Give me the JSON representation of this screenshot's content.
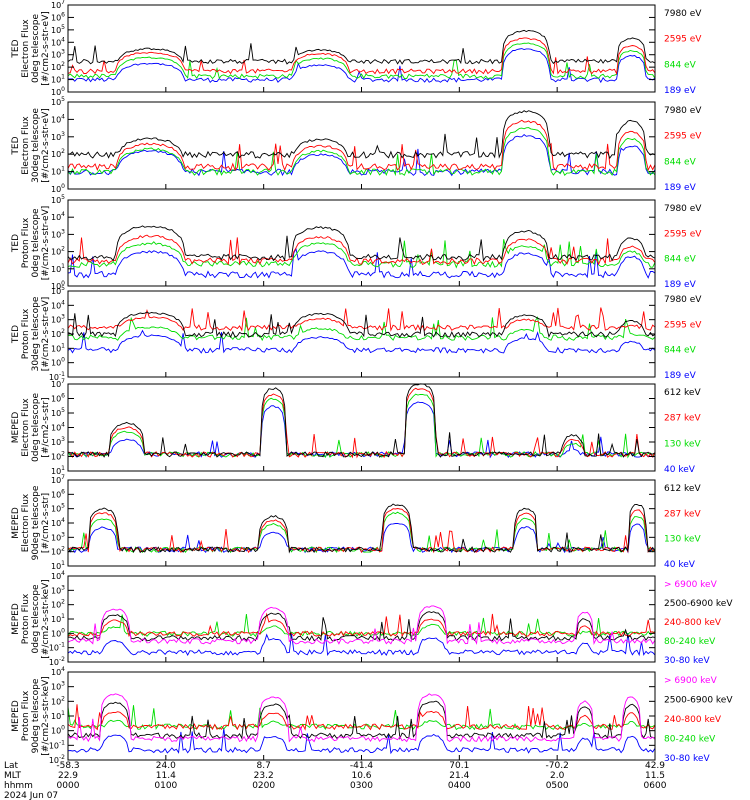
{
  "colors": {
    "blue": "#0000ff",
    "red": "#ff0000",
    "green": "#00dd00",
    "black": "#000000",
    "magenta": "#ff00ff"
  },
  "chart_data": [
    {
      "type": "line",
      "ylabel_lines": [
        "TED",
        "Electron Flux",
        "0deg telescope",
        "[#/cm2-s-str-eV]"
      ],
      "yscale": "log",
      "ylim": [
        1,
        10000000
      ],
      "ytick_labels": [
        "10^0",
        "10^1",
        "10^2",
        "10^3",
        "10^4",
        "10^5",
        "10^6",
        "10^7"
      ],
      "legend": [
        {
          "label": "7980 eV",
          "color": "#000000"
        },
        {
          "label": "2595 eV",
          "color": "#ff0000"
        },
        {
          "label": "844 eV",
          "color": "#00dd00"
        },
        {
          "label": "189 eV",
          "color": "#0000ff"
        }
      ],
      "baseline": [
        300,
        50,
        20,
        10
      ],
      "peaks": [
        {
          "x": 0.14,
          "v": [
            3000,
            1500,
            600,
            200
          ],
          "w": 0.12
        },
        {
          "x": 0.43,
          "v": [
            2500,
            1200,
            500,
            150
          ],
          "w": 0.1
        },
        {
          "x": 0.78,
          "v": [
            80000,
            20000,
            8000,
            3000
          ],
          "w": 0.08
        },
        {
          "x": 0.96,
          "v": [
            20000,
            5000,
            2000,
            800
          ],
          "w": 0.05
        }
      ]
    },
    {
      "type": "line",
      "ylabel_lines": [
        "TED",
        "Electron Flux",
        "30deg telescope",
        "[#/cm2-s-str-eV]"
      ],
      "yscale": "log",
      "ylim": [
        1,
        100000
      ],
      "ytick_labels": [
        "10^0",
        "10^1",
        "10^2",
        "10^3",
        "10^4",
        "10^5"
      ],
      "legend": [
        {
          "label": "7980 eV",
          "color": "#000000"
        },
        {
          "label": "2595 eV",
          "color": "#ff0000"
        },
        {
          "label": "844 eV",
          "color": "#00dd00"
        },
        {
          "label": "189 eV",
          "color": "#0000ff"
        }
      ],
      "baseline": [
        100,
        20,
        10,
        10
      ],
      "peaks": [
        {
          "x": 0.14,
          "v": [
            800,
            400,
            200,
            150
          ],
          "w": 0.12
        },
        {
          "x": 0.43,
          "v": [
            700,
            300,
            150,
            100
          ],
          "w": 0.1
        },
        {
          "x": 0.78,
          "v": [
            30000,
            8000,
            3000,
            1200
          ],
          "w": 0.08
        },
        {
          "x": 0.96,
          "v": [
            8000,
            2000,
            800,
            300
          ],
          "w": 0.05
        }
      ]
    },
    {
      "type": "line",
      "ylabel_lines": [
        "TED",
        "Proton Flux",
        "0deg telescope",
        "[#/cm2-s-str-eV]"
      ],
      "yscale": "log",
      "ylim": [
        1,
        100000
      ],
      "ytick_labels": [
        "10^0",
        "10^1",
        "10^2",
        "10^3",
        "10^4",
        "10^5"
      ],
      "legend": [
        {
          "label": "7980 eV",
          "color": "#000000"
        },
        {
          "label": "2595 eV",
          "color": "#ff0000"
        },
        {
          "label": "844 eV",
          "color": "#00dd00"
        },
        {
          "label": "189 eV",
          "color": "#0000ff"
        }
      ],
      "baseline": [
        50,
        30,
        20,
        5
      ],
      "peaks": [
        {
          "x": 0.14,
          "v": [
            3000,
            800,
            300,
            100
          ],
          "w": 0.12
        },
        {
          "x": 0.43,
          "v": [
            2500,
            700,
            300,
            100
          ],
          "w": 0.1
        },
        {
          "x": 0.78,
          "v": [
            1500,
            500,
            200,
            80
          ],
          "w": 0.08
        },
        {
          "x": 0.96,
          "v": [
            600,
            200,
            100,
            50
          ],
          "w": 0.05
        }
      ]
    },
    {
      "type": "line",
      "ylabel_lines": [
        "TED",
        "Proton Flux",
        "30deg telescope",
        "[#/cm2-s-str-eV]"
      ],
      "yscale": "log",
      "ylim": [
        0.1,
        100000
      ],
      "ytick_labels": [
        "10^-1",
        "10^0",
        "10^1",
        "10^2",
        "10^3",
        "10^4",
        "10^5"
      ],
      "legend": [
        {
          "label": "7980 eV",
          "color": "#000000"
        },
        {
          "label": "2595 eV",
          "color": "#ff0000"
        },
        {
          "label": "844 eV",
          "color": "#00dd00"
        },
        {
          "label": "189 eV",
          "color": "#0000ff"
        }
      ],
      "baseline": [
        100,
        300,
        60,
        8
      ],
      "peaks": [
        {
          "x": 0.14,
          "v": [
            3000,
            1500,
            300,
            80
          ],
          "w": 0.12
        },
        {
          "x": 0.43,
          "v": [
            2500,
            1200,
            250,
            60
          ],
          "w": 0.1
        },
        {
          "x": 0.78,
          "v": [
            2000,
            1000,
            200,
            50
          ],
          "w": 0.08
        },
        {
          "x": 0.96,
          "v": [
            800,
            400,
            100,
            30
          ],
          "w": 0.05
        }
      ]
    },
    {
      "type": "line",
      "ylabel_lines": [
        "MEPED",
        "Electron Flux",
        "0deg telescope",
        "[#/cm2-s-str]"
      ],
      "yscale": "log",
      "ylim": [
        10,
        10000000
      ],
      "ytick_labels": [
        "10^1",
        "10^2",
        "10^3",
        "10^4",
        "10^5",
        "10^6",
        "10^7"
      ],
      "legend": [
        {
          "label": "612 keV",
          "color": "#000000"
        },
        {
          "label": "287 keV",
          "color": "#ff0000"
        },
        {
          "label": "130 keV",
          "color": "#00dd00"
        },
        {
          "label": "40 keV",
          "color": "#0000ff"
        }
      ],
      "baseline": [
        150,
        150,
        150,
        150
      ],
      "peaks": [
        {
          "x": 0.1,
          "v": [
            20000,
            10000,
            5000,
            1500
          ],
          "w": 0.06
        },
        {
          "x": 0.35,
          "v": [
            5000000,
            2000000,
            1000000,
            300000
          ],
          "w": 0.04
        },
        {
          "x": 0.6,
          "v": [
            10000000,
            5000000,
            2000000,
            600000
          ],
          "w": 0.05
        },
        {
          "x": 0.86,
          "v": [
            3000,
            1500,
            800,
            300
          ],
          "w": 0.04
        }
      ]
    },
    {
      "type": "line",
      "ylabel_lines": [
        "MEPED",
        "Electron Flux",
        "90deg telescope",
        "[#/cm2-s-str]"
      ],
      "yscale": "log",
      "ylim": [
        10,
        10000000
      ],
      "ytick_labels": [
        "10^1",
        "10^2",
        "10^3",
        "10^4",
        "10^5",
        "10^6",
        "10^7"
      ],
      "legend": [
        {
          "label": "612 keV",
          "color": "#000000"
        },
        {
          "label": "287 keV",
          "color": "#ff0000"
        },
        {
          "label": "130 keV",
          "color": "#00dd00"
        },
        {
          "label": "40 keV",
          "color": "#0000ff"
        }
      ],
      "baseline": [
        150,
        150,
        150,
        150
      ],
      "peaks": [
        {
          "x": 0.06,
          "v": [
            100000,
            50000,
            20000,
            5000
          ],
          "w": 0.05
        },
        {
          "x": 0.35,
          "v": [
            30000,
            15000,
            8000,
            2000
          ],
          "w": 0.05
        },
        {
          "x": 0.56,
          "v": [
            200000,
            100000,
            50000,
            10000
          ],
          "w": 0.05
        },
        {
          "x": 0.78,
          "v": [
            100000,
            50000,
            20000,
            5000
          ],
          "w": 0.04
        },
        {
          "x": 0.97,
          "v": [
            200000,
            80000,
            30000,
            8000
          ],
          "w": 0.03
        }
      ]
    },
    {
      "type": "line",
      "ylabel_lines": [
        "MEPED",
        "Proton Flux",
        "0deg telescope",
        "[#/cm2-s-str-keV]"
      ],
      "yscale": "log",
      "ylim": [
        0.01,
        10000
      ],
      "ytick_labels": [
        "10^-2",
        "10^-1",
        "10^0",
        "10^1",
        "10^2",
        "10^3",
        "10^4"
      ],
      "legend": [
        {
          "label": "> 6900 keV",
          "color": "#ff00ff"
        },
        {
          "label": "2500-6900 keV",
          "color": "#000000"
        },
        {
          "label": "240-800 keV",
          "color": "#ff0000"
        },
        {
          "label": "80-240 keV",
          "color": "#00dd00"
        },
        {
          "label": "30-80 keV",
          "color": "#0000ff"
        }
      ],
      "baseline": [
        0.3,
        0.5,
        1,
        1,
        0.05
      ],
      "peaks": [
        {
          "x": 0.08,
          "v": [
            50,
            20,
            8,
            3,
            0.3
          ],
          "w": 0.05
        },
        {
          "x": 0.35,
          "v": [
            60,
            25,
            8,
            3,
            0.4
          ],
          "w": 0.05
        },
        {
          "x": 0.62,
          "v": [
            80,
            30,
            10,
            4,
            0.5
          ],
          "w": 0.05
        },
        {
          "x": 0.88,
          "v": [
            30,
            10,
            3,
            1,
            0.2
          ],
          "w": 0.03
        }
      ]
    },
    {
      "type": "line",
      "ylabel_lines": [
        "MEPED",
        "Proton Flux",
        "90deg telescope",
        "[#/cm2-s-str-keV]"
      ],
      "yscale": "log",
      "ylim": [
        0.01,
        10000
      ],
      "ytick_labels": [
        "10^-2",
        "10^-1",
        "10^0",
        "10^1",
        "10^2",
        "10^3",
        "10^4"
      ],
      "legend": [
        {
          "label": "> 6900 keV",
          "color": "#ff00ff"
        },
        {
          "label": "2500-6900 keV",
          "color": "#000000"
        },
        {
          "label": "240-800 keV",
          "color": "#ff0000"
        },
        {
          "label": "80-240 keV",
          "color": "#00dd00"
        },
        {
          "label": "30-80 keV",
          "color": "#0000ff"
        }
      ],
      "baseline": [
        0.3,
        0.5,
        2,
        2,
        0.05
      ],
      "peaks": [
        {
          "x": 0.08,
          "v": [
            300,
            80,
            20,
            5,
            0.5
          ],
          "w": 0.05
        },
        {
          "x": 0.35,
          "v": [
            200,
            60,
            15,
            4,
            0.4
          ],
          "w": 0.05
        },
        {
          "x": 0.62,
          "v": [
            300,
            100,
            20,
            5,
            0.5
          ],
          "w": 0.05
        },
        {
          "x": 0.88,
          "v": [
            100,
            40,
            10,
            3,
            0.3
          ],
          "w": 0.03
        },
        {
          "x": 0.96,
          "v": [
            200,
            60,
            15,
            4,
            0.4
          ],
          "w": 0.03
        }
      ]
    }
  ],
  "x_axis": {
    "row_labels": [
      "Lat",
      "MLT",
      "hhmm",
      "2024 Jun 07"
    ],
    "ticks": [
      {
        "lat": "-58.3",
        "mlt": "22.9",
        "hhmm": "0000"
      },
      {
        "lat": "24.0",
        "mlt": "11.4",
        "hhmm": "0100"
      },
      {
        "lat": "8.7",
        "mlt": "23.2",
        "hhmm": "0200"
      },
      {
        "lat": "-41.4",
        "mlt": "10.6",
        "hhmm": "0300"
      },
      {
        "lat": "70.1",
        "mlt": "21.4",
        "hhmm": "0400"
      },
      {
        "lat": "-70.2",
        "mlt": "2.0",
        "hhmm": "0500"
      },
      {
        "lat": "42.9",
        "mlt": "11.5",
        "hhmm": "0600"
      }
    ]
  }
}
